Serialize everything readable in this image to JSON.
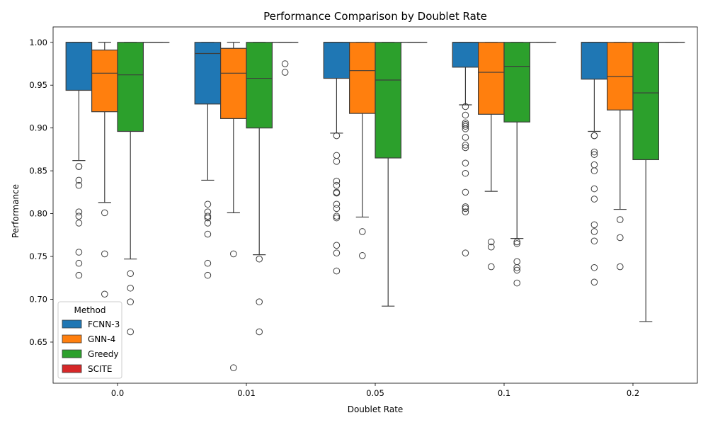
{
  "chart_data": {
    "type": "box",
    "title": "Performance Comparison by Doublet Rate",
    "xlabel": "Doublet Rate",
    "ylabel": "Performance",
    "ylim": [
      0.602,
      1.018
    ],
    "yticks": [
      "0.65",
      "0.70",
      "0.75",
      "0.80",
      "0.85",
      "0.90",
      "0.95",
      "1.00"
    ],
    "categories": [
      "0.0",
      "0.01",
      "0.05",
      "0.1",
      "0.2"
    ],
    "legend": {
      "title": "Method",
      "position": "lower-left"
    },
    "series": [
      {
        "name": "FCNN-3",
        "color": "#1f77b4",
        "boxes": [
          {
            "q1": 0.944,
            "median": 1.0,
            "q3": 1.0,
            "whislo": 0.862,
            "whishi": 1.0,
            "fliers": [
              0.855,
              0.855,
              0.839,
              0.833,
              0.802,
              0.797,
              0.789,
              0.755,
              0.742,
              0.728
            ]
          },
          {
            "q1": 0.928,
            "median": 0.987,
            "q3": 1.0,
            "whislo": 0.839,
            "whishi": 1.0,
            "fliers": [
              0.811,
              0.802,
              0.797,
              0.795,
              0.789,
              0.776,
              0.742,
              0.728
            ]
          },
          {
            "q1": 0.958,
            "median": 1.0,
            "q3": 1.0,
            "whislo": 0.894,
            "whishi": 1.0,
            "fliers": [
              0.891,
              0.868,
              0.861,
              0.838,
              0.833,
              0.825,
              0.824,
              0.811,
              0.806,
              0.797,
              0.795,
              0.763,
              0.754,
              0.733
            ]
          },
          {
            "q1": 0.971,
            "median": 1.0,
            "q3": 1.0,
            "whislo": 0.927,
            "whishi": 1.0,
            "fliers": [
              0.925,
              0.915,
              0.906,
              0.904,
              0.902,
              0.899,
              0.889,
              0.88,
              0.877,
              0.859,
              0.847,
              0.825,
              0.808,
              0.806,
              0.802,
              0.754
            ]
          },
          {
            "q1": 0.957,
            "median": 1.0,
            "q3": 1.0,
            "whislo": 0.896,
            "whishi": 1.0,
            "fliers": [
              0.891,
              0.891,
              0.872,
              0.869,
              0.857,
              0.85,
              0.829,
              0.817,
              0.787,
              0.779,
              0.768,
              0.737,
              0.72
            ]
          }
        ]
      },
      {
        "name": "GNN-4",
        "color": "#ff7f0e",
        "boxes": [
          {
            "q1": 0.919,
            "median": 0.964,
            "q3": 0.991,
            "whislo": 0.813,
            "whishi": 1.0,
            "fliers": [
              0.801,
              0.753,
              0.706
            ]
          },
          {
            "q1": 0.911,
            "median": 0.964,
            "q3": 0.993,
            "whislo": 0.801,
            "whishi": 1.0,
            "fliers": [
              0.753,
              0.62
            ]
          },
          {
            "q1": 0.917,
            "median": 0.967,
            "q3": 1.0,
            "whislo": 0.796,
            "whishi": 1.0,
            "fliers": [
              0.779,
              0.751
            ]
          },
          {
            "q1": 0.916,
            "median": 0.965,
            "q3": 1.0,
            "whislo": 0.826,
            "whishi": 1.0,
            "fliers": [
              0.767,
              0.761,
              0.738
            ]
          },
          {
            "q1": 0.921,
            "median": 0.96,
            "q3": 1.0,
            "whislo": 0.805,
            "whishi": 1.0,
            "fliers": [
              0.793,
              0.772,
              0.738
            ]
          }
        ]
      },
      {
        "name": "Greedy",
        "color": "#2ca02c",
        "boxes": [
          {
            "q1": 0.896,
            "median": 0.962,
            "q3": 1.0,
            "whislo": 0.747,
            "whishi": 1.0,
            "fliers": [
              0.73,
              0.713,
              0.697,
              0.662
            ]
          },
          {
            "q1": 0.9,
            "median": 0.958,
            "q3": 1.0,
            "whislo": 0.752,
            "whishi": 1.0,
            "fliers": [
              0.747,
              0.697,
              0.662
            ]
          },
          {
            "q1": 0.865,
            "median": 0.956,
            "q3": 1.0,
            "whislo": 0.692,
            "whishi": 1.0,
            "fliers": []
          },
          {
            "q1": 0.907,
            "median": 0.972,
            "q3": 1.0,
            "whislo": 0.771,
            "whishi": 1.0,
            "fliers": [
              0.767,
              0.765,
              0.744,
              0.737,
              0.734,
              0.719
            ]
          },
          {
            "q1": 0.863,
            "median": 0.941,
            "q3": 1.0,
            "whislo": 0.674,
            "whishi": 1.0,
            "fliers": []
          }
        ]
      },
      {
        "name": "SCITE",
        "color": "#d62728",
        "boxes": [
          {
            "q1": 1.0,
            "median": 1.0,
            "q3": 1.0,
            "whislo": 1.0,
            "whishi": 1.0,
            "fliers": []
          },
          {
            "q1": 1.0,
            "median": 1.0,
            "q3": 1.0,
            "whislo": 1.0,
            "whishi": 1.0,
            "fliers": [
              0.975,
              0.965
            ]
          },
          {
            "q1": 1.0,
            "median": 1.0,
            "q3": 1.0,
            "whislo": 1.0,
            "whishi": 1.0,
            "fliers": []
          },
          {
            "q1": 1.0,
            "median": 1.0,
            "q3": 1.0,
            "whislo": 1.0,
            "whishi": 1.0,
            "fliers": []
          },
          {
            "q1": 1.0,
            "median": 1.0,
            "q3": 1.0,
            "whislo": 1.0,
            "whishi": 1.0,
            "fliers": []
          }
        ]
      }
    ]
  }
}
